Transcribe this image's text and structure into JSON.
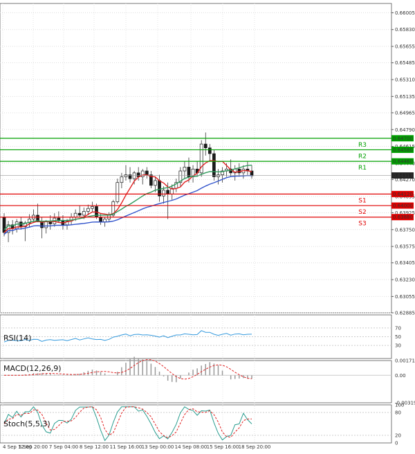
{
  "chart_data": [
    {
      "type": "candlestick",
      "name": "price",
      "y_ticks": [
        "0.66005",
        "0.65830",
        "0.65655",
        "0.65485",
        "0.65310",
        "0.65135",
        "0.64965",
        "0.64790",
        "0.64615",
        "0.64440",
        "0.64270",
        "0.64095",
        "0.63925",
        "0.63750",
        "0.63575",
        "0.63405",
        "0.63230",
        "0.63055",
        "0.62885"
      ],
      "ylim": [
        0.62885,
        0.6608
      ],
      "x_labels": [
        "4 Sep 12:00",
        "5 Sep 20:00",
        "7 Sep 04:00",
        "8 Sep 12:00",
        "11 Sep 16:00",
        "13 Sep 00:00",
        "14 Sep 08:00",
        "15 Sep 16:00",
        "18 Sep 20:00"
      ],
      "levels": [
        {
          "label": "R3",
          "value": "0.64700",
          "color": "#00a000"
        },
        {
          "label": "R2",
          "value": "0.64580",
          "color": "#00a000"
        },
        {
          "label": "R1",
          "value": "0.64460",
          "color": "#00a000"
        },
        {
          "label": "S1",
          "value": "0.64120",
          "color": "#e00000"
        },
        {
          "label": "S2",
          "value": "0.64000",
          "color": "#e00000"
        },
        {
          "label": "S3",
          "value": "0.63880",
          "color": "#e00000"
        }
      ],
      "current_price": "0.64313",
      "candles": [
        [
          0.6388,
          0.6392,
          0.6368,
          0.6372
        ],
        [
          0.6372,
          0.6384,
          0.6362,
          0.638
        ],
        [
          0.638,
          0.6385,
          0.637,
          0.6376
        ],
        [
          0.6376,
          0.6386,
          0.6372,
          0.6383
        ],
        [
          0.6383,
          0.6388,
          0.6375,
          0.6378
        ],
        [
          0.6378,
          0.6384,
          0.6363,
          0.6382
        ],
        [
          0.6382,
          0.6391,
          0.6377,
          0.6386
        ],
        [
          0.6386,
          0.6396,
          0.6382,
          0.639
        ],
        [
          0.639,
          0.6402,
          0.6384,
          0.6383
        ],
        [
          0.6383,
          0.6388,
          0.6366,
          0.6377
        ],
        [
          0.6377,
          0.6385,
          0.6371,
          0.6383
        ],
        [
          0.6383,
          0.639,
          0.6375,
          0.6381
        ],
        [
          0.6381,
          0.6392,
          0.6378,
          0.6387
        ],
        [
          0.6387,
          0.6394,
          0.6382,
          0.6384
        ],
        [
          0.6384,
          0.639,
          0.6375,
          0.638
        ],
        [
          0.638,
          0.6386,
          0.6375,
          0.6384
        ],
        [
          0.6384,
          0.6392,
          0.638,
          0.6388
        ],
        [
          0.6388,
          0.6396,
          0.6384,
          0.6392
        ],
        [
          0.6392,
          0.64,
          0.6388,
          0.639
        ],
        [
          0.639,
          0.6398,
          0.6386,
          0.6394
        ],
        [
          0.6394,
          0.6401,
          0.639,
          0.6397
        ],
        [
          0.6397,
          0.6404,
          0.6393,
          0.6399
        ],
        [
          0.6399,
          0.6402,
          0.6386,
          0.6388
        ],
        [
          0.6388,
          0.6392,
          0.638,
          0.6383
        ],
        [
          0.6383,
          0.6388,
          0.6378,
          0.6386
        ],
        [
          0.6386,
          0.6393,
          0.6383,
          0.639
        ],
        [
          0.639,
          0.6406,
          0.6388,
          0.6404
        ],
        [
          0.6404,
          0.6428,
          0.6402,
          0.6424
        ],
        [
          0.6424,
          0.6434,
          0.6418,
          0.643
        ],
        [
          0.643,
          0.6442,
          0.6426,
          0.6432
        ],
        [
          0.6432,
          0.644,
          0.6424,
          0.6428
        ],
        [
          0.6428,
          0.6436,
          0.6422,
          0.6434
        ],
        [
          0.6434,
          0.644,
          0.6426,
          0.643
        ],
        [
          0.643,
          0.6438,
          0.6422,
          0.6436
        ],
        [
          0.6436,
          0.644,
          0.6428,
          0.6432
        ],
        [
          0.6432,
          0.6436,
          0.6418,
          0.6421
        ],
        [
          0.6421,
          0.643,
          0.6414,
          0.6426
        ],
        [
          0.6426,
          0.6432,
          0.6404,
          0.641
        ],
        [
          0.641,
          0.642,
          0.6402,
          0.6416
        ],
        [
          0.6416,
          0.6424,
          0.6386,
          0.6412
        ],
        [
          0.6412,
          0.6422,
          0.6406,
          0.6418
        ],
        [
          0.6418,
          0.6428,
          0.6414,
          0.6424
        ],
        [
          0.6424,
          0.644,
          0.642,
          0.6436
        ],
        [
          0.6436,
          0.6446,
          0.6428,
          0.644
        ],
        [
          0.644,
          0.645,
          0.6424,
          0.643
        ],
        [
          0.643,
          0.6442,
          0.6424,
          0.6438
        ],
        [
          0.6438,
          0.6446,
          0.643,
          0.6434
        ],
        [
          0.6434,
          0.6468,
          0.643,
          0.6464
        ],
        [
          0.6464,
          0.6476,
          0.6452,
          0.646
        ],
        [
          0.646,
          0.6464,
          0.6446,
          0.6454
        ],
        [
          0.6454,
          0.6458,
          0.6426,
          0.643
        ],
        [
          0.643,
          0.6438,
          0.6422,
          0.6432
        ],
        [
          0.6432,
          0.644,
          0.6424,
          0.6436
        ],
        [
          0.6436,
          0.6444,
          0.643,
          0.6438
        ],
        [
          0.6438,
          0.6448,
          0.643,
          0.6434
        ],
        [
          0.6434,
          0.6442,
          0.6426,
          0.6438
        ],
        [
          0.6438,
          0.6444,
          0.643,
          0.6434
        ],
        [
          0.6434,
          0.6442,
          0.6428,
          0.6438
        ],
        [
          0.6438,
          0.6446,
          0.6432,
          0.6436
        ],
        [
          0.6436,
          0.6442,
          0.6428,
          0.6431
        ]
      ]
    },
    {
      "type": "line",
      "name": "RSI(14)",
      "y_ticks": [
        "70",
        "50",
        "30"
      ],
      "ylim": [
        0,
        100
      ]
    },
    {
      "type": "histogram",
      "name": "MACD(12,26,9)",
      "y_ticks": [
        "0.001714",
        "0.00",
        "-0.003195"
      ],
      "ylim": [
        -0.003195,
        0.001714
      ]
    },
    {
      "type": "line",
      "name": "Stoch(5,5,3)",
      "y_ticks": [
        "100",
        "80",
        "20",
        "0"
      ],
      "ylim": [
        0,
        100
      ]
    }
  ]
}
